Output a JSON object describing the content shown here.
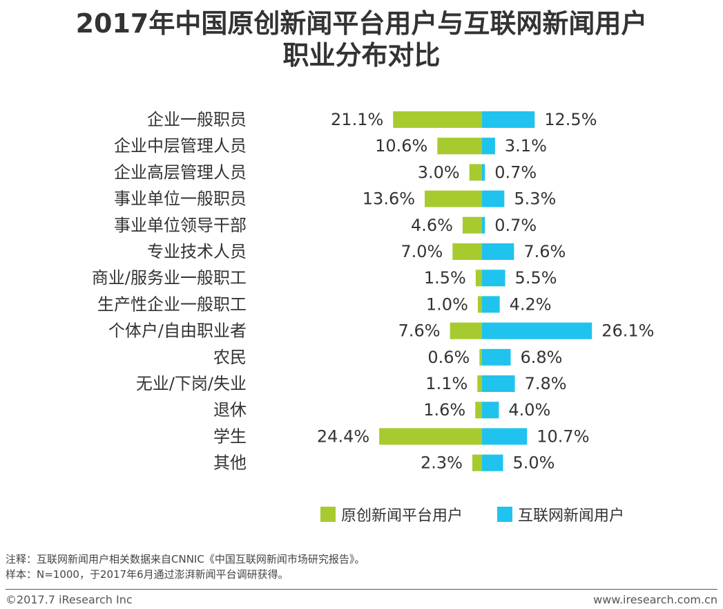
{
  "title": {
    "line1": "2017年中国原创新闻平台用户与互联网新闻用户",
    "line2": "职业分布对比"
  },
  "chart_data": {
    "type": "bar",
    "orientation": "horizontal-diverging",
    "categories": [
      "企业一般职员",
      "企业中层管理人员",
      "企业高层管理人员",
      "事业单位一般职员",
      "事业单位领导干部",
      "专业技术人员",
      "商业/服务业一般职工",
      "生产性企业一般职工",
      "个体户/自由职业者",
      "农民",
      "无业/下岗/失业",
      "退休",
      "学生",
      "其他"
    ],
    "series": [
      {
        "name": "原创新闻平台用户",
        "color": "#a7cb2f",
        "values": [
          21.1,
          10.6,
          3.0,
          13.6,
          4.6,
          7.0,
          1.5,
          1.0,
          7.6,
          0.6,
          1.1,
          1.6,
          24.4,
          2.3
        ],
        "labels": [
          "21.1%",
          "10.6%",
          "3.0%",
          "13.6%",
          "4.6%",
          "7.0%",
          "1.5%",
          "1.0%",
          "7.6%",
          "0.6%",
          "1.1%",
          "1.6%",
          "24.4%",
          "2.3%"
        ]
      },
      {
        "name": "互联网新闻用户",
        "color": "#1fc3ee",
        "values": [
          12.5,
          3.1,
          0.7,
          5.3,
          0.7,
          7.6,
          5.5,
          4.2,
          26.1,
          6.8,
          7.8,
          4.0,
          10.7,
          5.0
        ],
        "labels": [
          "12.5%",
          "3.1%",
          "0.7%",
          "5.3%",
          "0.7%",
          "7.6%",
          "5.5%",
          "4.2%",
          "26.1%",
          "6.8%",
          "7.8%",
          "4.0%",
          "10.7%",
          "5.0%"
        ]
      }
    ],
    "unit": "%"
  },
  "notes": {
    "note1": "注释：互联网新闻用户相关数据来自CNNIC《中国互联网新闻市场研究报告》。",
    "note2": "样本：N=1000，于2017年6月通过澎湃新闻平台调研获得。"
  },
  "footer": {
    "left": "©2017.7 iResearch Inc",
    "right": "www.iresearch.com.cn"
  }
}
